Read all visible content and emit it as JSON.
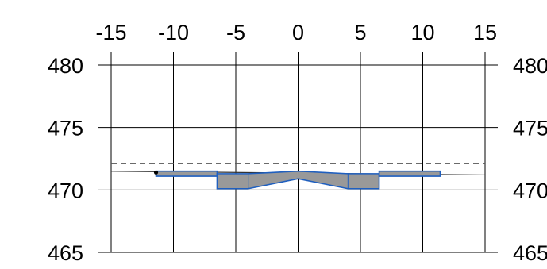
{
  "chart_data": {
    "type": "line",
    "title": "",
    "xlabel": "",
    "ylabel": "",
    "xlim": [
      -15,
      15
    ],
    "ylim": [
      465,
      480
    ],
    "x_ticks": [
      -15,
      -10,
      -5,
      0,
      5,
      10,
      15
    ],
    "y_ticks": [
      465,
      470,
      475,
      480
    ],
    "x_tick_labels": [
      "-15",
      "-10",
      "-5",
      "0",
      "5",
      "10",
      "15"
    ],
    "y_tick_labels": [
      "465",
      "470",
      "475",
      "480"
    ],
    "right_y_tick_labels": [
      "480",
      "475",
      "470",
      "465"
    ],
    "grid": true,
    "colors": {
      "axis": "#000000",
      "grid": "#000000",
      "dash_line": "#555555",
      "fill": "#999999",
      "outline": "#1f5fbf"
    },
    "series": [
      {
        "kind": "dashed-line",
        "x": [
          -15,
          15
        ],
        "y": [
          472.1,
          472.1
        ]
      },
      {
        "kind": "solid-line",
        "x": [
          -15,
          15
        ],
        "y": [
          471.5,
          471.2
        ]
      },
      {
        "kind": "left-shoulder",
        "x": [
          -11.4,
          -6.5,
          -6.5,
          -11.4
        ],
        "y": [
          471.5,
          471.5,
          471.1,
          471.1
        ]
      },
      {
        "kind": "center-body",
        "x": [
          -6.5,
          -4.0,
          -2.0,
          0.0,
          2.0,
          4.0,
          6.5,
          6.5,
          4.0,
          0.0,
          -4.0,
          -6.5
        ],
        "y": [
          471.3,
          471.3,
          471.4,
          471.5,
          471.4,
          471.3,
          471.3,
          470.1,
          470.1,
          470.9,
          470.1,
          470.1
        ]
      },
      {
        "kind": "right-shoulder",
        "x": [
          6.5,
          11.4,
          11.4,
          6.5
        ],
        "y": [
          471.5,
          471.5,
          471.1,
          471.1
        ]
      },
      {
        "kind": "endpoint",
        "x": [
          -11.4
        ],
        "y": [
          471.4
        ]
      }
    ]
  }
}
